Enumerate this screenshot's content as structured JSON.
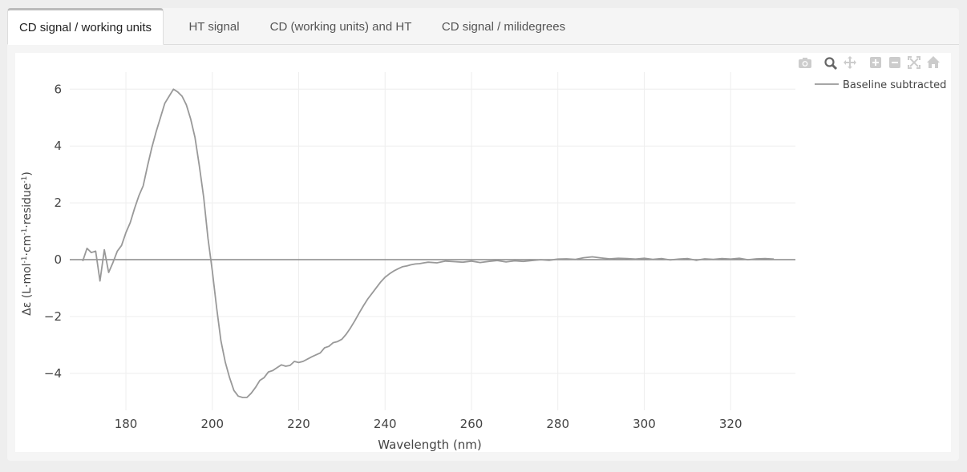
{
  "tabs": [
    {
      "label": "CD signal / working units",
      "active": true
    },
    {
      "label": "HT signal",
      "active": false
    },
    {
      "label": "CD (working units) and HT",
      "active": false
    },
    {
      "label": "CD signal / milidegrees",
      "active": false
    }
  ],
  "modebar": {
    "icons": [
      "camera-icon",
      "zoom-icon",
      "pan-icon",
      "zoom-in-icon",
      "zoom-out-icon",
      "autoscale-icon",
      "home-icon"
    ],
    "active": "zoom-icon"
  },
  "chart_data": {
    "type": "line",
    "xlabel": "Wavelength (nm)",
    "ylabel_main": "Δε (L·mol",
    "ylabel_parts": [
      {
        "text": "Δε (L·mol",
        "sup": false
      },
      {
        "text": "-1",
        "sup": true
      },
      {
        "text": "·cm",
        "sup": false
      },
      {
        "text": "-1",
        "sup": true
      },
      {
        "text": "·residue",
        "sup": false
      },
      {
        "text": "-1",
        "sup": true
      },
      {
        "text": ")",
        "sup": false
      }
    ],
    "xlim": [
      167,
      335
    ],
    "ylim": [
      -5.3,
      6.6
    ],
    "x_ticks": [
      180,
      200,
      220,
      240,
      260,
      280,
      300,
      320
    ],
    "y_ticks": [
      6,
      4,
      2,
      0,
      -2,
      -4
    ],
    "y_tick_labels": [
      "6",
      "4",
      "2",
      "0",
      "−2",
      "−4"
    ],
    "grid": true,
    "legend_position": "top-right",
    "line_color": "#999999",
    "series": [
      {
        "name": "Baseline subtracted",
        "x": [
          170,
          171,
          172,
          173,
          174,
          175,
          176,
          177,
          178,
          179,
          180,
          181,
          182,
          183,
          184,
          185,
          186,
          187,
          188,
          189,
          190,
          191,
          192,
          193,
          194,
          195,
          196,
          197,
          198,
          199,
          200,
          201,
          202,
          203,
          204,
          205,
          206,
          207,
          208,
          209,
          210,
          211,
          212,
          213,
          214,
          215,
          216,
          217,
          218,
          219,
          220,
          221,
          222,
          223,
          224,
          225,
          226,
          227,
          228,
          229,
          230,
          231,
          232,
          233,
          234,
          235,
          236,
          237,
          238,
          239,
          240,
          241,
          242,
          243,
          244,
          245,
          246,
          247,
          248,
          249,
          250,
          252,
          254,
          256,
          258,
          260,
          262,
          264,
          266,
          268,
          270,
          272,
          274,
          276,
          278,
          280,
          282,
          284,
          286,
          288,
          290,
          292,
          294,
          296,
          298,
          300,
          302,
          304,
          306,
          308,
          310,
          312,
          314,
          316,
          318,
          320,
          322,
          324,
          326,
          328,
          330
        ],
        "y": [
          -0.05,
          0.4,
          0.25,
          0.3,
          -0.75,
          0.35,
          -0.45,
          -0.1,
          0.3,
          0.5,
          0.95,
          1.3,
          1.8,
          2.25,
          2.6,
          3.3,
          3.95,
          4.5,
          5.0,
          5.5,
          5.75,
          6.0,
          5.9,
          5.75,
          5.45,
          4.95,
          4.3,
          3.3,
          2.2,
          0.75,
          -0.4,
          -1.7,
          -2.85,
          -3.6,
          -4.15,
          -4.6,
          -4.8,
          -4.85,
          -4.85,
          -4.7,
          -4.5,
          -4.25,
          -4.15,
          -3.95,
          -3.9,
          -3.8,
          -3.7,
          -3.75,
          -3.72,
          -3.58,
          -3.62,
          -3.58,
          -3.5,
          -3.42,
          -3.35,
          -3.28,
          -3.1,
          -3.05,
          -2.92,
          -2.88,
          -2.8,
          -2.62,
          -2.4,
          -2.15,
          -1.88,
          -1.62,
          -1.38,
          -1.18,
          -0.98,
          -0.78,
          -0.62,
          -0.5,
          -0.4,
          -0.32,
          -0.25,
          -0.22,
          -0.18,
          -0.15,
          -0.14,
          -0.11,
          -0.09,
          -0.11,
          -0.05,
          -0.07,
          -0.09,
          -0.05,
          -0.1,
          -0.06,
          -0.03,
          -0.08,
          -0.04,
          -0.06,
          -0.03,
          0.0,
          -0.02,
          0.02,
          0.03,
          0.01,
          0.07,
          0.1,
          0.06,
          0.03,
          0.05,
          0.04,
          0.02,
          0.05,
          0.01,
          0.04,
          -0.01,
          0.02,
          0.04,
          -0.02,
          0.03,
          0.01,
          0.04,
          0.02,
          0.05,
          0.0,
          0.03,
          0.04,
          0.02
        ]
      }
    ]
  }
}
